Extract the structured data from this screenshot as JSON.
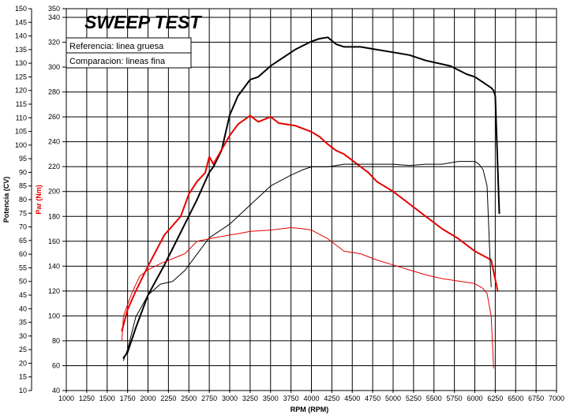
{
  "chart_data": {
    "type": "line",
    "title": "SWEEP TEST",
    "xlabel": "RPM (RPM)",
    "ylabel_left": "Potencia (CV)",
    "ylabel_right": "Par (Nm)",
    "xlim": [
      1000,
      7000
    ],
    "x_ticks": [
      1000,
      1250,
      1500,
      1750,
      2000,
      2250,
      2500,
      2750,
      3000,
      3250,
      3500,
      3750,
      4000,
      4250,
      4500,
      4750,
      5000,
      5250,
      5500,
      5750,
      6000,
      6250,
      6500,
      6750,
      7000
    ],
    "ylim_left": [
      10,
      150
    ],
    "left_ticks": [
      10,
      15,
      20,
      25,
      30,
      35,
      40,
      45,
      50,
      55,
      60,
      65,
      70,
      75,
      80,
      85,
      90,
      95,
      100,
      105,
      110,
      115,
      120,
      125,
      130,
      135,
      140,
      145,
      150
    ],
    "ylim_right": [
      40,
      350
    ],
    "right_ticks": [
      40,
      60,
      80,
      100,
      120,
      140,
      160,
      180,
      200,
      220,
      240,
      260,
      280,
      300,
      320,
      340
    ],
    "right_tick_top": "350",
    "grid": true,
    "legend": [
      {
        "label": "Referencia: linea gruesa",
        "style": "thick"
      },
      {
        "label": "Comparacion: lineas fina",
        "style": "thin"
      }
    ],
    "series": [
      {
        "axis": "left",
        "color": "#000000",
        "width": 2.0,
        "x": [
          1700,
          1750,
          1850,
          2000,
          2200,
          2400,
          2500,
          2600,
          2750,
          2800,
          2900,
          3000,
          3100,
          3250,
          3350,
          3500,
          3600,
          3800,
          4000,
          4100,
          4200,
          4300,
          4400,
          4600,
          4800,
          5000,
          5200,
          5400,
          5700,
          5900,
          6000,
          6100,
          6200,
          6230,
          6250,
          6300
        ],
        "y": [
          22,
          24,
          33,
          45,
          56,
          68,
          74,
          80,
          90,
          92,
          98,
          111,
          118,
          124,
          125,
          129,
          131,
          135,
          138,
          139,
          139.5,
          137,
          136,
          136,
          135,
          134,
          133,
          131,
          129,
          126,
          125,
          123,
          121,
          120,
          118,
          75
        ]
      },
      {
        "axis": "right",
        "color": "#e60000",
        "width": 2.0,
        "x": [
          1680,
          1750,
          1850,
          2000,
          2200,
          2400,
          2500,
          2600,
          2700,
          2750,
          2800,
          3000,
          3100,
          3250,
          3350,
          3500,
          3600,
          3800,
          4000,
          4100,
          4200,
          4300,
          4400,
          4500,
          4700,
          4800,
          5000,
          5200,
          5400,
          5600,
          5800,
          6000,
          6200,
          6280
        ],
        "y": [
          88,
          105,
          120,
          140,
          165,
          180,
          198,
          208,
          215,
          228,
          222,
          245,
          254,
          261,
          256,
          260,
          255,
          253,
          248,
          244,
          238,
          233,
          230,
          225,
          215,
          208,
          200,
          190,
          180,
          170,
          162,
          152,
          145,
          120
        ]
      },
      {
        "axis": "left",
        "color": "#000000",
        "width": 1.0,
        "x": [
          1700,
          1750,
          1850,
          2000,
          2150,
          2300,
          2450,
          2600,
          2750,
          3000,
          3250,
          3500,
          3750,
          3900,
          4000,
          4200,
          4400,
          4600,
          4800,
          5000,
          5200,
          5400,
          5600,
          5800,
          6000,
          6050,
          6100,
          6150,
          6200
        ],
        "y": [
          21,
          25,
          37,
          45,
          49,
          50,
          54,
          60,
          66,
          71,
          78,
          85,
          89,
          91,
          92,
          92,
          93,
          93,
          93,
          93,
          92.5,
          93,
          93,
          94,
          94,
          93,
          91,
          85,
          48
        ]
      },
      {
        "axis": "right",
        "color": "#e60000",
        "width": 1.0,
        "x": [
          1680,
          1700,
          1800,
          1900,
          2000,
          2150,
          2300,
          2450,
          2600,
          2750,
          3000,
          3100,
          3250,
          3500,
          3750,
          3900,
          4000,
          4200,
          4400,
          4600,
          4800,
          5000,
          5200,
          5400,
          5600,
          5800,
          6000,
          6100,
          6150,
          6200,
          6230
        ],
        "y": [
          80,
          100,
          118,
          132,
          137,
          142,
          146,
          150,
          160,
          162,
          165,
          166,
          168,
          169,
          171,
          170,
          169,
          162,
          152,
          150,
          145,
          141,
          137,
          133,
          130,
          128,
          126,
          122,
          118,
          100,
          58
        ]
      }
    ]
  }
}
